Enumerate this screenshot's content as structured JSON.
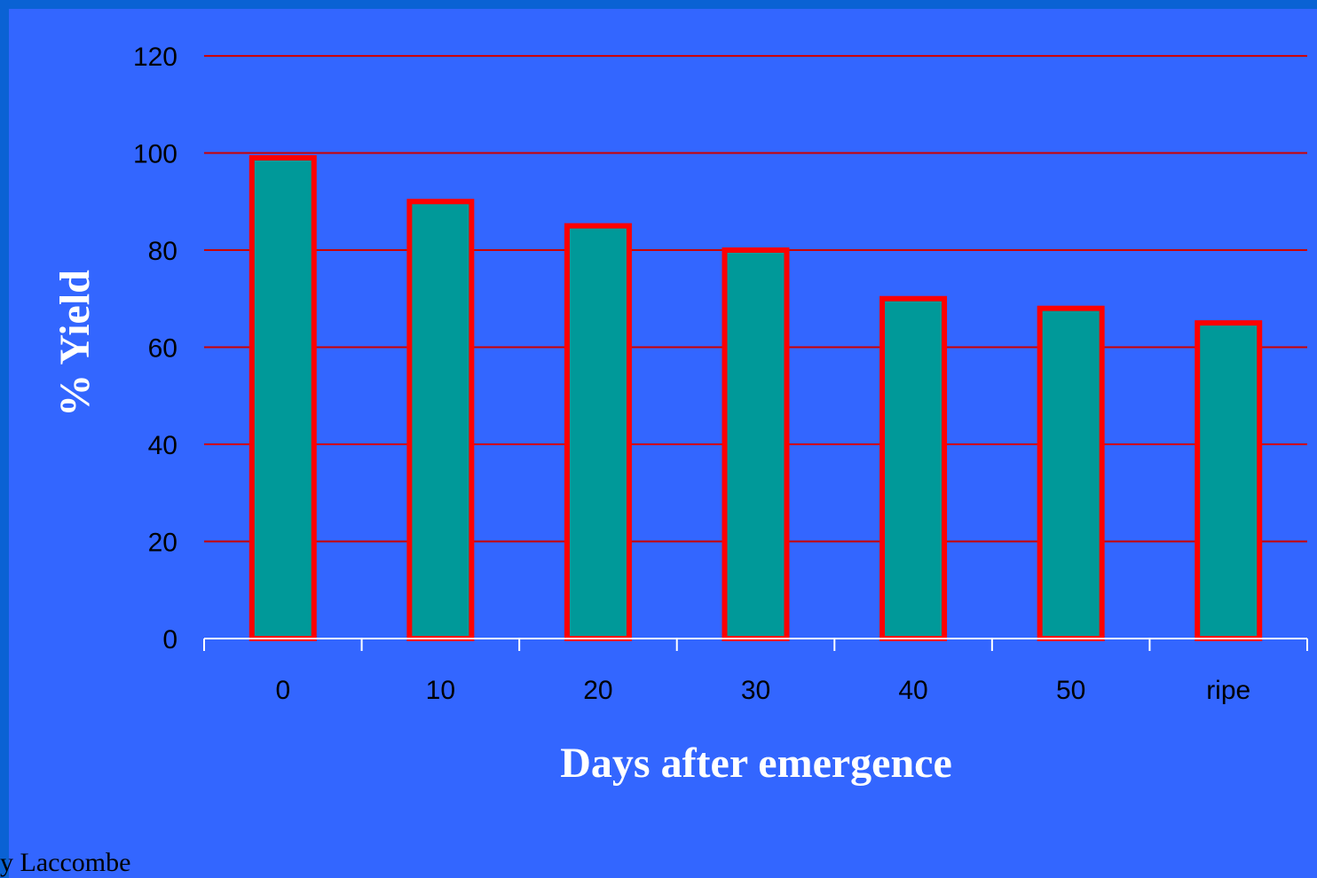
{
  "chart_data": {
    "type": "bar",
    "categories": [
      "0",
      "10",
      "20",
      "30",
      "40",
      "50",
      "ripe"
    ],
    "values": [
      99,
      90,
      85,
      80,
      70,
      68,
      65
    ],
    "xlabel": "Days after emergence",
    "ylabel": "% Yield",
    "ylim": [
      0,
      120
    ],
    "yticks": [
      "0",
      "20",
      "40",
      "60",
      "80",
      "100",
      "120"
    ],
    "grid": true,
    "legend": "none"
  },
  "colors": {
    "background": "#3366FF",
    "frame": "#0A62D4",
    "bar_fill": "#009999",
    "bar_edge": "#FF0000",
    "gridline": "#CC0000",
    "axis": "#FFFFFF",
    "title_text": "#FFFFFF",
    "tick_text": "#000000"
  },
  "footer": {
    "credit": "y Laccombe"
  }
}
